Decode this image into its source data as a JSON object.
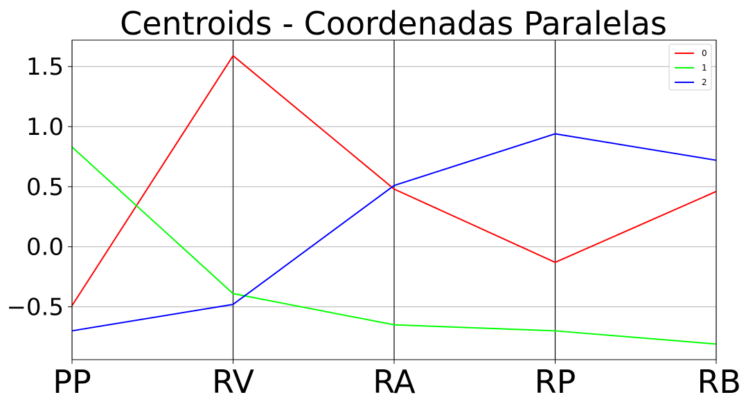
{
  "chart_data": {
    "type": "line",
    "title": "Centroids - Coordenadas Paralelas",
    "categories": [
      "PP",
      "RV",
      "RA",
      "RP",
      "RB"
    ],
    "ylim": [
      -0.94,
      1.72
    ],
    "yticks": [
      1.5,
      1.0,
      0.5,
      0.0,
      -0.5
    ],
    "ytick_labels": [
      "1.5",
      "1.0",
      "0.5",
      "0.0",
      "−0.5"
    ],
    "grid": "horizontal",
    "legend_placement": "top-right",
    "series": [
      {
        "name": "0",
        "color": "#ff0000",
        "values": [
          -0.49,
          1.59,
          0.48,
          -0.13,
          0.46
        ]
      },
      {
        "name": "1",
        "color": "#00ff00",
        "values": [
          0.83,
          -0.39,
          -0.65,
          -0.7,
          -0.81
        ]
      },
      {
        "name": "2",
        "color": "#0000ff",
        "values": [
          -0.7,
          -0.48,
          0.51,
          0.94,
          0.72
        ]
      }
    ]
  }
}
